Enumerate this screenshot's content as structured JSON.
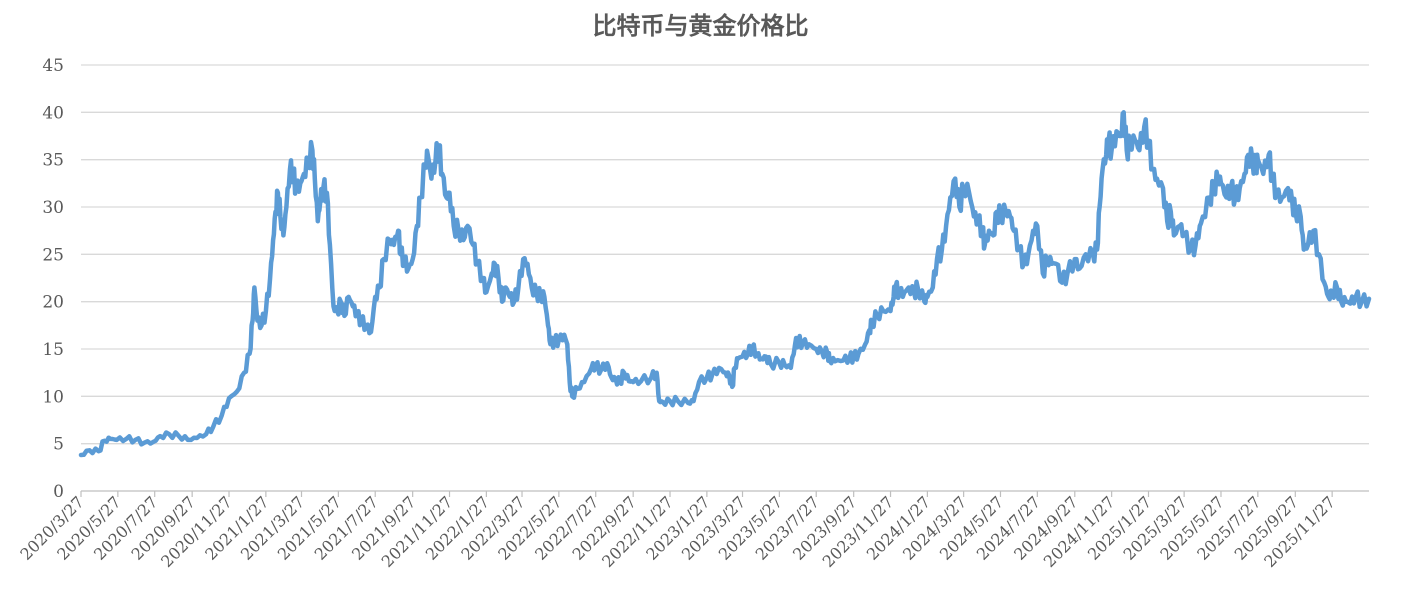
{
  "chart_data": {
    "type": "line",
    "title": "比特币与黄金价格比",
    "xlabel": "",
    "ylabel": "",
    "ylim": [
      0,
      45
    ],
    "y_ticks": [
      0,
      5,
      10,
      15,
      20,
      25,
      30,
      35,
      40,
      45
    ],
    "x_range": [
      "2020-03-27",
      "2026-01-27"
    ],
    "x_tick_labels": [
      "2020/3/27",
      "2020/5/27",
      "2020/7/27",
      "2020/9/27",
      "2020/11/27",
      "2021/1/27",
      "2021/3/27",
      "2021/5/27",
      "2021/7/27",
      "2021/9/27",
      "2021/11/27",
      "2022/1/27",
      "2022/3/27",
      "2022/5/27",
      "2022/7/27",
      "2022/9/27",
      "2022/11/27",
      "2023/1/27",
      "2023/3/27",
      "2023/5/27",
      "2023/7/27",
      "2023/9/27",
      "2023/11/27",
      "2024/1/27",
      "2024/3/27",
      "2024/5/27",
      "2024/7/27",
      "2024/9/27",
      "2024/11/27",
      "2025/1/27",
      "2025/3/27",
      "2025/5/27",
      "2025/7/27",
      "2025/9/27",
      "2025/11/27"
    ],
    "grid": "horizontal",
    "legend": "none",
    "series": [
      {
        "color": "#5B9BD5",
        "points": [
          [
            "2020-03-27",
            3.8
          ],
          [
            "2020-04-10",
            4.3
          ],
          [
            "2020-04-25",
            4.2
          ],
          [
            "2020-05-05",
            5.3
          ],
          [
            "2020-05-15",
            5.5
          ],
          [
            "2020-05-25",
            5.4
          ],
          [
            "2020-06-10",
            5.5
          ],
          [
            "2020-06-25",
            5.4
          ],
          [
            "2020-07-10",
            5.1
          ],
          [
            "2020-07-25",
            5.2
          ],
          [
            "2020-08-05",
            5.8
          ],
          [
            "2020-08-20",
            6.0
          ],
          [
            "2020-09-05",
            5.8
          ],
          [
            "2020-09-20",
            5.4
          ],
          [
            "2020-10-05",
            5.6
          ],
          [
            "2020-10-20",
            6.0
          ],
          [
            "2020-11-01",
            6.8
          ],
          [
            "2020-11-15",
            8.0
          ],
          [
            "2020-11-27",
            9.8
          ],
          [
            "2020-12-10",
            10.5
          ],
          [
            "2020-12-22",
            12.5
          ],
          [
            "2020-12-31",
            14.5
          ],
          [
            "2021-01-05",
            18.0
          ],
          [
            "2021-01-08",
            21.5
          ],
          [
            "2021-01-13",
            18.0
          ],
          [
            "2021-01-20",
            17.5
          ],
          [
            "2021-01-27",
            19.0
          ],
          [
            "2021-02-03",
            22.5
          ],
          [
            "2021-02-08",
            26.5
          ],
          [
            "2021-02-12",
            29.5
          ],
          [
            "2021-02-16",
            31.5
          ],
          [
            "2021-02-20",
            29.0
          ],
          [
            "2021-02-25",
            27.0
          ],
          [
            "2021-03-02",
            30.0
          ],
          [
            "2021-03-08",
            34.0
          ],
          [
            "2021-03-13",
            33.5
          ],
          [
            "2021-03-18",
            32.0
          ],
          [
            "2021-03-25",
            32.5
          ],
          [
            "2021-03-31",
            33.5
          ],
          [
            "2021-04-07",
            35.0
          ],
          [
            "2021-04-14",
            36.0
          ],
          [
            "2021-04-18",
            33.0
          ],
          [
            "2021-04-23",
            28.5
          ],
          [
            "2021-04-27",
            30.5
          ],
          [
            "2021-05-02",
            32.0
          ],
          [
            "2021-05-08",
            31.5
          ],
          [
            "2021-05-13",
            26.0
          ],
          [
            "2021-05-19",
            19.5
          ],
          [
            "2021-05-25",
            19.0
          ],
          [
            "2021-05-31",
            20.0
          ],
          [
            "2021-06-06",
            18.5
          ],
          [
            "2021-06-13",
            20.5
          ],
          [
            "2021-06-20",
            19.5
          ],
          [
            "2021-06-27",
            18.5
          ],
          [
            "2021-07-04",
            18.0
          ],
          [
            "2021-07-12",
            17.5
          ],
          [
            "2021-07-20",
            16.8
          ],
          [
            "2021-07-27",
            20.5
          ],
          [
            "2021-08-03",
            21.5
          ],
          [
            "2021-08-10",
            24.5
          ],
          [
            "2021-08-20",
            26.5
          ],
          [
            "2021-08-27",
            26.0
          ],
          [
            "2021-09-03",
            27.5
          ],
          [
            "2021-09-07",
            25.0
          ],
          [
            "2021-09-13",
            24.5
          ],
          [
            "2021-09-20",
            23.5
          ],
          [
            "2021-09-27",
            24.5
          ],
          [
            "2021-10-04",
            28.0
          ],
          [
            "2021-10-10",
            31.0
          ],
          [
            "2021-10-18",
            34.5
          ],
          [
            "2021-10-22",
            35.5
          ],
          [
            "2021-10-28",
            33.0
          ],
          [
            "2021-11-04",
            35.0
          ],
          [
            "2021-11-09",
            36.5
          ],
          [
            "2021-11-15",
            33.5
          ],
          [
            "2021-11-22",
            31.0
          ],
          [
            "2021-11-27",
            31.5
          ],
          [
            "2021-12-04",
            28.0
          ],
          [
            "2021-12-12",
            27.5
          ],
          [
            "2021-12-20",
            26.5
          ],
          [
            "2021-12-27",
            28.0
          ],
          [
            "2022-01-05",
            26.0
          ],
          [
            "2022-01-12",
            24.0
          ],
          [
            "2022-01-21",
            22.5
          ],
          [
            "2022-01-27",
            21.0
          ],
          [
            "2022-02-05",
            23.0
          ],
          [
            "2022-02-10",
            24.0
          ],
          [
            "2022-02-16",
            22.5
          ],
          [
            "2022-02-22",
            20.0
          ],
          [
            "2022-02-28",
            21.5
          ],
          [
            "2022-03-07",
            20.5
          ],
          [
            "2022-03-14",
            20.0
          ],
          [
            "2022-03-21",
            21.5
          ],
          [
            "2022-03-29",
            24.5
          ],
          [
            "2022-04-05",
            24.0
          ],
          [
            "2022-04-12",
            21.5
          ],
          [
            "2022-04-20",
            21.0
          ],
          [
            "2022-04-27",
            20.5
          ],
          [
            "2022-05-03",
            20.5
          ],
          [
            "2022-05-09",
            17.5
          ],
          [
            "2022-05-13",
            15.5
          ],
          [
            "2022-05-20",
            15.8
          ],
          [
            "2022-05-27",
            16.0
          ],
          [
            "2022-06-05",
            16.5
          ],
          [
            "2022-06-10",
            15.5
          ],
          [
            "2022-06-14",
            11.5
          ],
          [
            "2022-06-18",
            10.0
          ],
          [
            "2022-06-27",
            10.8
          ],
          [
            "2022-07-08",
            11.5
          ],
          [
            "2022-07-20",
            13.0
          ],
          [
            "2022-07-27",
            13.2
          ],
          [
            "2022-08-05",
            12.8
          ],
          [
            "2022-08-15",
            13.5
          ],
          [
            "2022-08-22",
            12.0
          ],
          [
            "2022-08-29",
            11.8
          ],
          [
            "2022-09-05",
            11.5
          ],
          [
            "2022-09-12",
            12.5
          ],
          [
            "2022-09-20",
            11.6
          ],
          [
            "2022-09-27",
            11.5
          ],
          [
            "2022-10-10",
            11.6
          ],
          [
            "2022-10-27",
            12.0
          ],
          [
            "2022-11-05",
            12.5
          ],
          [
            "2022-11-09",
            9.5
          ],
          [
            "2022-11-15",
            9.4
          ],
          [
            "2022-11-27",
            9.5
          ],
          [
            "2022-12-10",
            9.5
          ],
          [
            "2022-12-27",
            9.3
          ],
          [
            "2023-01-05",
            9.5
          ],
          [
            "2023-01-14",
            11.5
          ],
          [
            "2023-01-27",
            12.0
          ],
          [
            "2023-02-05",
            12.3
          ],
          [
            "2023-02-16",
            13.0
          ],
          [
            "2023-02-27",
            12.5
          ],
          [
            "2023-03-05",
            12.2
          ],
          [
            "2023-03-10",
            11.0
          ],
          [
            "2023-03-14",
            13.0
          ],
          [
            "2023-03-20",
            14.0
          ],
          [
            "2023-03-27",
            14.2
          ],
          [
            "2023-04-05",
            14.5
          ],
          [
            "2023-04-12",
            15.2
          ],
          [
            "2023-04-20",
            14.5
          ],
          [
            "2023-04-27",
            14.0
          ],
          [
            "2023-05-05",
            14.2
          ],
          [
            "2023-05-12",
            13.5
          ],
          [
            "2023-05-27",
            13.5
          ],
          [
            "2023-06-05",
            13.3
          ],
          [
            "2023-06-15",
            13.0
          ],
          [
            "2023-06-22",
            15.5
          ],
          [
            "2023-06-27",
            15.8
          ],
          [
            "2023-07-05",
            15.7
          ],
          [
            "2023-07-15",
            15.5
          ],
          [
            "2023-07-27",
            15.0
          ],
          [
            "2023-08-05",
            14.8
          ],
          [
            "2023-08-15",
            14.5
          ],
          [
            "2023-08-18",
            13.8
          ],
          [
            "2023-08-27",
            13.7
          ],
          [
            "2023-09-10",
            13.8
          ],
          [
            "2023-09-20",
            14.0
          ],
          [
            "2023-09-27",
            14.2
          ],
          [
            "2023-10-05",
            14.5
          ],
          [
            "2023-10-16",
            15.5
          ],
          [
            "2023-10-23",
            17.0
          ],
          [
            "2023-10-27",
            17.8
          ],
          [
            "2023-11-05",
            18.5
          ],
          [
            "2023-11-15",
            19.0
          ],
          [
            "2023-11-27",
            19.0
          ],
          [
            "2023-12-02",
            20.5
          ],
          [
            "2023-12-05",
            21.5
          ],
          [
            "2023-12-12",
            21.0
          ],
          [
            "2023-12-20",
            21.0
          ],
          [
            "2023-12-27",
            21.5
          ],
          [
            "2024-01-05",
            21.0
          ],
          [
            "2024-01-11",
            21.5
          ],
          [
            "2024-01-22",
            20.0
          ],
          [
            "2024-01-27",
            20.5
          ],
          [
            "2024-02-05",
            21.5
          ],
          [
            "2024-02-12",
            24.5
          ],
          [
            "2024-02-20",
            25.5
          ],
          [
            "2024-02-27",
            28.0
          ],
          [
            "2024-03-05",
            31.0
          ],
          [
            "2024-03-13",
            33.0
          ],
          [
            "2024-03-20",
            30.0
          ],
          [
            "2024-03-27",
            32.0
          ],
          [
            "2024-04-05",
            31.5
          ],
          [
            "2024-04-13",
            29.0
          ],
          [
            "2024-04-20",
            28.5
          ],
          [
            "2024-04-27",
            27.5
          ],
          [
            "2024-05-01",
            26.0
          ],
          [
            "2024-05-08",
            27.5
          ],
          [
            "2024-05-15",
            27.0
          ],
          [
            "2024-05-21",
            29.5
          ],
          [
            "2024-05-27",
            29.0
          ],
          [
            "2024-06-05",
            29.5
          ],
          [
            "2024-06-12",
            29.0
          ],
          [
            "2024-06-18",
            27.5
          ],
          [
            "2024-06-27",
            25.5
          ],
          [
            "2024-07-05",
            24.0
          ],
          [
            "2024-07-12",
            25.0
          ],
          [
            "2024-07-20",
            27.5
          ],
          [
            "2024-07-27",
            28.0
          ],
          [
            "2024-08-05",
            23.0
          ],
          [
            "2024-08-12",
            24.5
          ],
          [
            "2024-08-20",
            24.0
          ],
          [
            "2024-08-27",
            24.0
          ],
          [
            "2024-09-06",
            22.0
          ],
          [
            "2024-09-15",
            23.0
          ],
          [
            "2024-09-27",
            24.5
          ],
          [
            "2024-10-05",
            23.5
          ],
          [
            "2024-10-15",
            25.0
          ],
          [
            "2024-10-27",
            25.0
          ],
          [
            "2024-11-03",
            25.5
          ],
          [
            "2024-11-07",
            30.0
          ],
          [
            "2024-11-12",
            34.0
          ],
          [
            "2024-11-18",
            35.5
          ],
          [
            "2024-11-22",
            37.0
          ],
          [
            "2024-11-27",
            36.0
          ],
          [
            "2024-12-05",
            38.0
          ],
          [
            "2024-12-12",
            37.5
          ],
          [
            "2024-12-17",
            40.0
          ],
          [
            "2024-12-22",
            36.0
          ],
          [
            "2024-12-27",
            36.5
          ],
          [
            "2025-01-05",
            37.0
          ],
          [
            "2025-01-12",
            36.0
          ],
          [
            "2025-01-20",
            38.5
          ],
          [
            "2025-01-27",
            37.0
          ],
          [
            "2025-02-03",
            34.0
          ],
          [
            "2025-02-10",
            33.0
          ],
          [
            "2025-02-20",
            32.0
          ],
          [
            "2025-02-27",
            28.5
          ],
          [
            "2025-03-05",
            29.5
          ],
          [
            "2025-03-10",
            27.0
          ],
          [
            "2025-03-20",
            28.0
          ],
          [
            "2025-03-27",
            27.0
          ],
          [
            "2025-04-07",
            25.5
          ],
          [
            "2025-04-15",
            26.0
          ],
          [
            "2025-04-22",
            28.0
          ],
          [
            "2025-04-27",
            29.0
          ],
          [
            "2025-05-08",
            31.0
          ],
          [
            "2025-05-15",
            32.0
          ],
          [
            "2025-05-22",
            33.0
          ],
          [
            "2025-05-27",
            32.5
          ],
          [
            "2025-06-05",
            31.0
          ],
          [
            "2025-06-12",
            32.0
          ],
          [
            "2025-06-20",
            31.0
          ],
          [
            "2025-06-27",
            32.0
          ],
          [
            "2025-07-05",
            33.5
          ],
          [
            "2025-07-11",
            35.5
          ],
          [
            "2025-07-18",
            35.0
          ],
          [
            "2025-07-24",
            34.0
          ],
          [
            "2025-07-27",
            35.0
          ],
          [
            "2025-08-05",
            33.5
          ],
          [
            "2025-08-14",
            35.5
          ],
          [
            "2025-08-20",
            33.0
          ],
          [
            "2025-08-27",
            31.5
          ],
          [
            "2025-09-05",
            31.0
          ],
          [
            "2025-09-15",
            32.0
          ],
          [
            "2025-09-22",
            30.5
          ],
          [
            "2025-09-27",
            29.5
          ],
          [
            "2025-10-06",
            29.0
          ],
          [
            "2025-10-11",
            25.5
          ],
          [
            "2025-10-18",
            26.0
          ],
          [
            "2025-10-27",
            27.5
          ],
          [
            "2025-11-05",
            25.0
          ],
          [
            "2025-11-14",
            22.0
          ],
          [
            "2025-11-21",
            20.5
          ],
          [
            "2025-11-27",
            21.0
          ],
          [
            "2025-12-05",
            21.5
          ],
          [
            "2025-12-12",
            20.0
          ],
          [
            "2025-12-20",
            20.0
          ],
          [
            "2025-12-27",
            19.8
          ],
          [
            "2026-01-05",
            20.5
          ],
          [
            "2026-01-15",
            20.0
          ],
          [
            "2026-01-27",
            20.3
          ]
        ]
      }
    ]
  }
}
